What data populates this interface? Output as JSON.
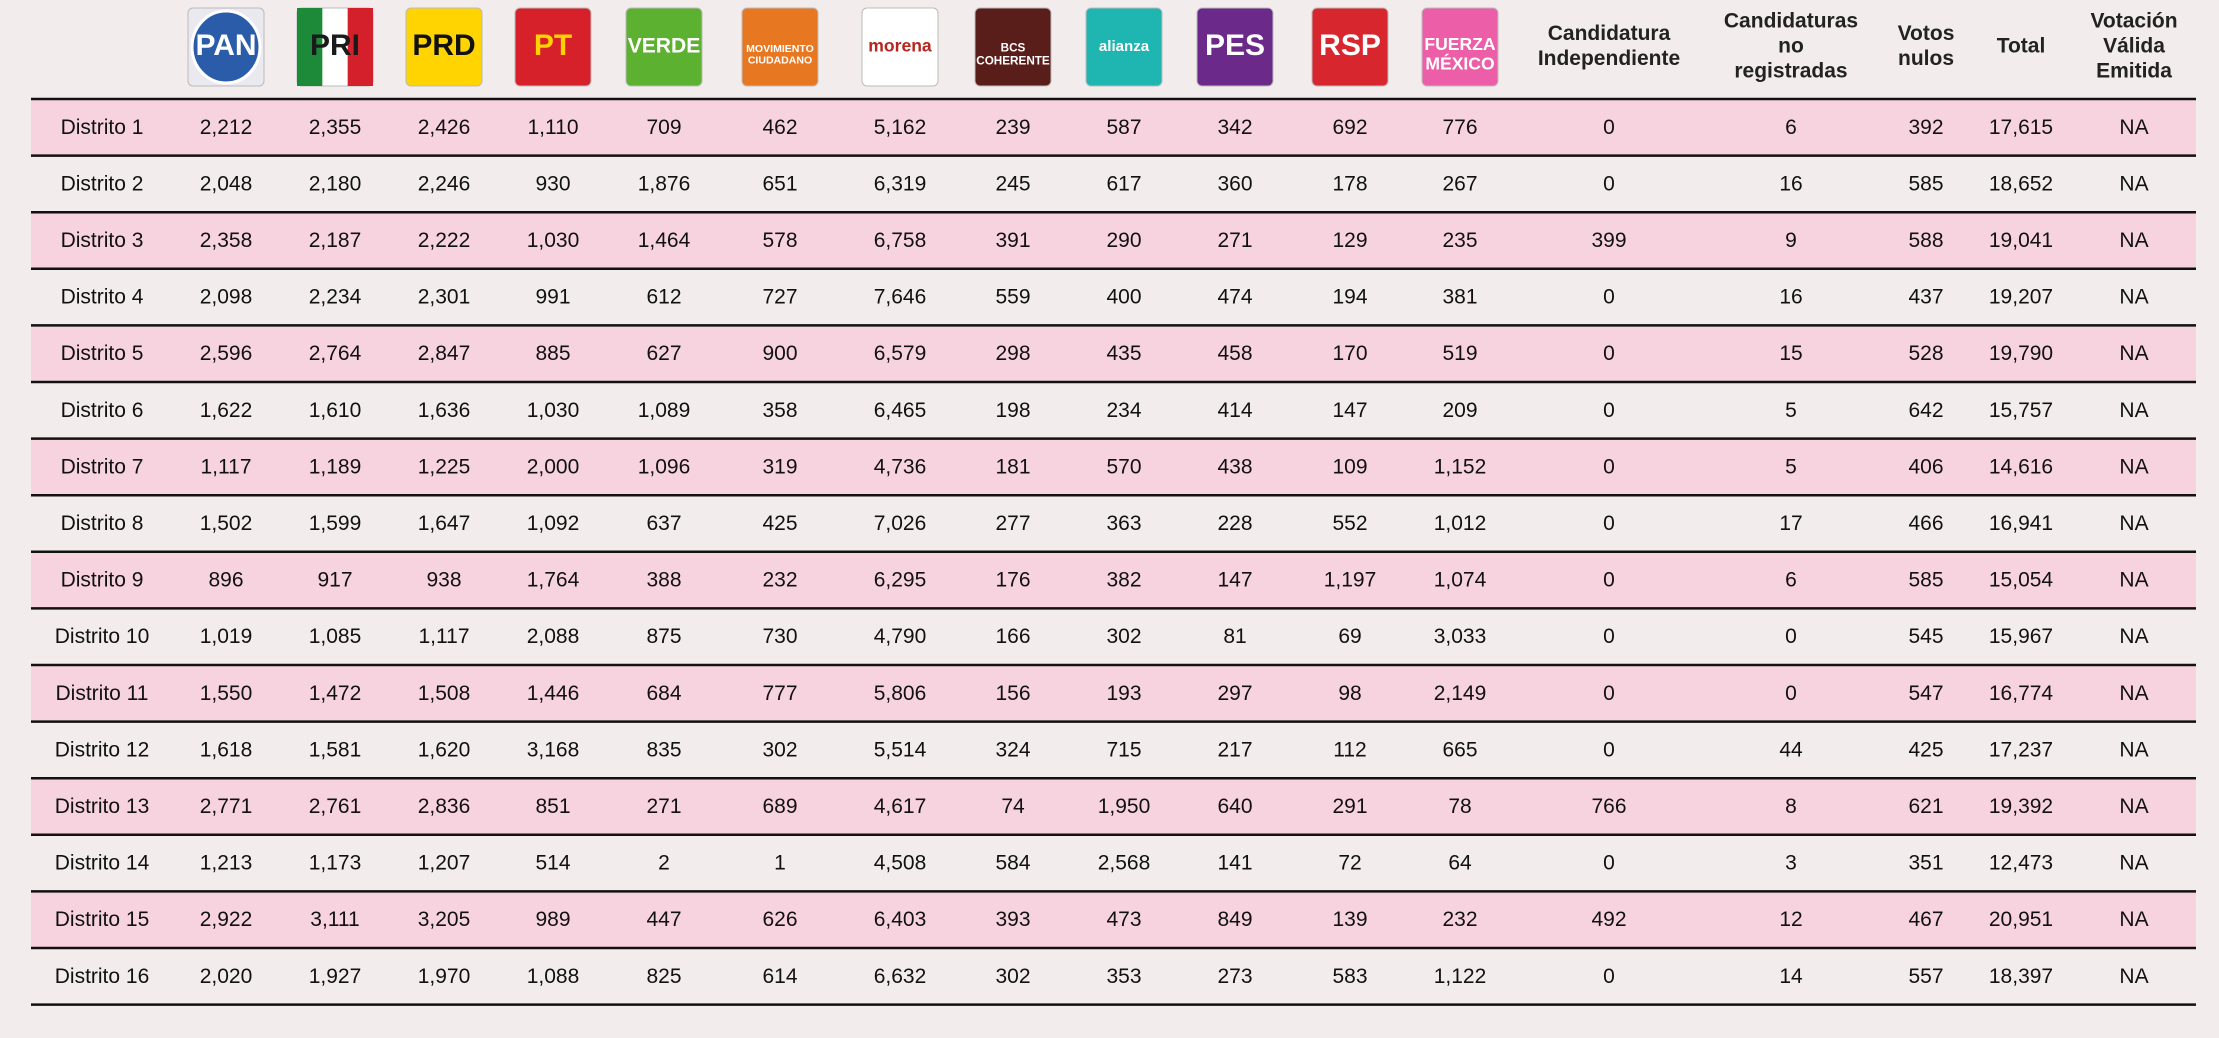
{
  "header": {
    "logos": [
      {
        "lines": [
          "PAN"
        ]
      },
      {
        "lines": [
          "PRI"
        ]
      },
      {
        "lines": [
          "PRD"
        ]
      },
      {
        "lines": [
          "PT"
        ]
      },
      {
        "lines": [
          "VERDE"
        ]
      },
      {
        "lines": [
          "MOVIMIENTO",
          "CIUDADANO"
        ]
      },
      {
        "lines": [
          "morena"
        ]
      },
      {
        "lines": [
          "BCS",
          "COHERENTE"
        ]
      },
      {
        "lines": [
          "alianza"
        ]
      },
      {
        "lines": [
          "PES"
        ]
      },
      {
        "lines": [
          "RSP"
        ]
      },
      {
        "lines": [
          "FUERZA",
          "MÉXICO"
        ]
      }
    ],
    "columns": [
      {
        "lines": [
          "Candidatura",
          "Independiente"
        ]
      },
      {
        "lines": [
          "Candidaturas",
          "no",
          "registradas"
        ]
      },
      {
        "lines": [
          "Votos",
          "nulos"
        ]
      },
      {
        "lines": [
          "Total"
        ]
      },
      {
        "lines": [
          "Votación",
          "Válida",
          "Emitida"
        ]
      }
    ]
  },
  "table": {
    "rows": [
      [
        "Distrito 1",
        "2,212",
        "2,355",
        "2,426",
        "1,110",
        "709",
        "462",
        "5,162",
        "239",
        "587",
        "342",
        "692",
        "776",
        "0",
        "6",
        "392",
        "17,615",
        "NA"
      ],
      [
        "Distrito 2",
        "2,048",
        "2,180",
        "2,246",
        "930",
        "1,876",
        "651",
        "6,319",
        "245",
        "617",
        "360",
        "178",
        "267",
        "0",
        "16",
        "585",
        "18,652",
        "NA"
      ],
      [
        "Distrito 3",
        "2,358",
        "2,187",
        "2,222",
        "1,030",
        "1,464",
        "578",
        "6,758",
        "391",
        "290",
        "271",
        "129",
        "235",
        "399",
        "9",
        "588",
        "19,041",
        "NA"
      ],
      [
        "Distrito 4",
        "2,098",
        "2,234",
        "2,301",
        "991",
        "612",
        "727",
        "7,646",
        "559",
        "400",
        "474",
        "194",
        "381",
        "0",
        "16",
        "437",
        "19,207",
        "NA"
      ],
      [
        "Distrito 5",
        "2,596",
        "2,764",
        "2,847",
        "885",
        "627",
        "900",
        "6,579",
        "298",
        "435",
        "458",
        "170",
        "519",
        "0",
        "15",
        "528",
        "19,790",
        "NA"
      ],
      [
        "Distrito 6",
        "1,622",
        "1,610",
        "1,636",
        "1,030",
        "1,089",
        "358",
        "6,465",
        "198",
        "234",
        "414",
        "147",
        "209",
        "0",
        "5",
        "642",
        "15,757",
        "NA"
      ],
      [
        "Distrito 7",
        "1,117",
        "1,189",
        "1,225",
        "2,000",
        "1,096",
        "319",
        "4,736",
        "181",
        "570",
        "438",
        "109",
        "1,152",
        "0",
        "5",
        "406",
        "14,616",
        "NA"
      ],
      [
        "Distrito 8",
        "1,502",
        "1,599",
        "1,647",
        "1,092",
        "637",
        "425",
        "7,026",
        "277",
        "363",
        "228",
        "552",
        "1,012",
        "0",
        "17",
        "466",
        "16,941",
        "NA"
      ],
      [
        "Distrito 9",
        "896",
        "917",
        "938",
        "1,764",
        "388",
        "232",
        "6,295",
        "176",
        "382",
        "147",
        "1,197",
        "1,074",
        "0",
        "6",
        "585",
        "15,054",
        "NA"
      ],
      [
        "Distrito 10",
        "1,019",
        "1,085",
        "1,117",
        "2,088",
        "875",
        "730",
        "4,790",
        "166",
        "302",
        "81",
        "69",
        "3,033",
        "0",
        "0",
        "545",
        "15,967",
        "NA"
      ],
      [
        "Distrito 11",
        "1,550",
        "1,472",
        "1,508",
        "1,446",
        "684",
        "777",
        "5,806",
        "156",
        "193",
        "297",
        "98",
        "2,149",
        "0",
        "0",
        "547",
        "16,774",
        "NA"
      ],
      [
        "Distrito 12",
        "1,618",
        "1,581",
        "1,620",
        "3,168",
        "835",
        "302",
        "5,514",
        "324",
        "715",
        "217",
        "112",
        "665",
        "0",
        "44",
        "425",
        "17,237",
        "NA"
      ],
      [
        "Distrito 13",
        "2,771",
        "2,761",
        "2,836",
        "851",
        "271",
        "689",
        "4,617",
        "74",
        "1,950",
        "640",
        "291",
        "78",
        "766",
        "8",
        "621",
        "19,392",
        "NA"
      ],
      [
        "Distrito 14",
        "1,213",
        "1,173",
        "1,207",
        "514",
        "2",
        "1",
        "4,508",
        "584",
        "2,568",
        "141",
        "72",
        "64",
        "0",
        "3",
        "351",
        "12,473",
        "NA"
      ],
      [
        "Distrito 15",
        "2,922",
        "3,111",
        "3,205",
        "989",
        "447",
        "626",
        "6,403",
        "393",
        "473",
        "849",
        "139",
        "232",
        "492",
        "12",
        "467",
        "20,951",
        "NA"
      ],
      [
        "Distrito 16",
        "2,020",
        "1,927",
        "1,970",
        "1,088",
        "825",
        "614",
        "6,632",
        "302",
        "353",
        "273",
        "583",
        "1,122",
        "0",
        "14",
        "557",
        "18,397",
        "NA"
      ]
    ]
  }
}
